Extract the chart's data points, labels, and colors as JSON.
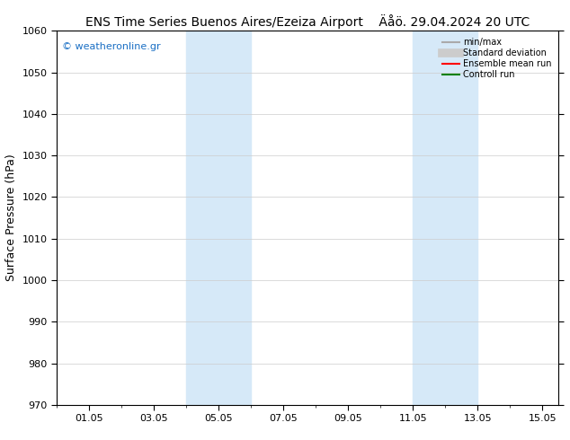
{
  "title_left": "ENS Time Series Buenos Aires/Ezeiza Airport",
  "title_right": "Äåö. 29.04.2024 20 UTC",
  "ylabel": "Surface Pressure (hPa)",
  "ylim": [
    970,
    1060
  ],
  "yticks": [
    970,
    980,
    990,
    1000,
    1010,
    1020,
    1030,
    1040,
    1050,
    1060
  ],
  "xlabel_dates": [
    "01.05",
    "03.05",
    "05.05",
    "07.05",
    "09.05",
    "11.05",
    "13.05",
    "15.05"
  ],
  "xtick_positions": [
    1,
    3,
    5,
    7,
    9,
    11,
    13,
    15
  ],
  "xlim": [
    0.0,
    15.5
  ],
  "watermark": "© weatheronline.gr",
  "bg_color": "#ffffff",
  "plot_bg_color": "#ffffff",
  "shade_color": "#d6e9f8",
  "shade_alpha": 1.0,
  "shade_bands": [
    {
      "xstart": 4.0,
      "xend": 6.0
    },
    {
      "xstart": 11.0,
      "xend": 13.0
    }
  ],
  "legend_items": [
    {
      "label": "min/max",
      "color": "#aaaaaa",
      "lw": 1.5,
      "style": "solid"
    },
    {
      "label": "Standard deviation",
      "color": "#cccccc",
      "lw": 7,
      "style": "solid"
    },
    {
      "label": "Ensemble mean run",
      "color": "#ff0000",
      "lw": 1.5,
      "style": "solid"
    },
    {
      "label": "Controll run",
      "color": "#008000",
      "lw": 1.5,
      "style": "solid"
    }
  ],
  "title_fontsize": 10,
  "axis_label_fontsize": 9,
  "tick_fontsize": 8,
  "watermark_fontsize": 8,
  "watermark_color": "#1a6fc4",
  "grid_color": "#cccccc",
  "grid_lw": 0.5,
  "spine_color": "#000000",
  "spine_lw": 0.8
}
